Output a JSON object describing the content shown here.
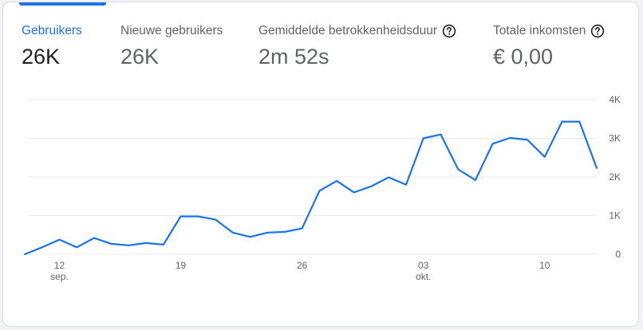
{
  "metrics": [
    {
      "label": "Gebruikers",
      "value": "26K",
      "help": false
    },
    {
      "label": "Nieuwe gebruikers",
      "value": "26K",
      "help": false
    },
    {
      "label": "Gemiddelde betrokkenheidsduur",
      "value": "2m 52s",
      "help": true
    },
    {
      "label": "Totale inkomsten",
      "value": "€ 0,00",
      "help": true
    }
  ],
  "colors": {
    "accent": "#1a73e8",
    "line": "#1a73e8",
    "grid": "#e8eaed"
  },
  "chart_data": {
    "type": "line",
    "x_start": "2023-09-10",
    "x_end": "2023-10-12",
    "x_ticks": [
      {
        "date": "2023-09-12",
        "label": "12",
        "sublabel": "sep."
      },
      {
        "date": "2023-09-19",
        "label": "19",
        "sublabel": ""
      },
      {
        "date": "2023-09-26",
        "label": "26",
        "sublabel": ""
      },
      {
        "date": "2023-10-03",
        "label": "03",
        "sublabel": "okt."
      },
      {
        "date": "2023-10-10",
        "label": "10",
        "sublabel": ""
      }
    ],
    "y_ticks": [
      {
        "value": 0,
        "label": "0"
      },
      {
        "value": 1000,
        "label": "1K"
      },
      {
        "value": 2000,
        "label": "2K"
      },
      {
        "value": 3000,
        "label": "3K"
      },
      {
        "value": 4000,
        "label": "4K"
      }
    ],
    "ylim": [
      0,
      4000
    ],
    "grid": true,
    "series": [
      {
        "color": "#1a73e8",
        "points": [
          {
            "x": "2023-09-10",
            "y": 0
          },
          {
            "x": "2023-09-11",
            "y": 180
          },
          {
            "x": "2023-09-12",
            "y": 380
          },
          {
            "x": "2023-09-13",
            "y": 180
          },
          {
            "x": "2023-09-14",
            "y": 420
          },
          {
            "x": "2023-09-15",
            "y": 270
          },
          {
            "x": "2023-09-16",
            "y": 230
          },
          {
            "x": "2023-09-17",
            "y": 290
          },
          {
            "x": "2023-09-18",
            "y": 250
          },
          {
            "x": "2023-09-19",
            "y": 980
          },
          {
            "x": "2023-09-20",
            "y": 980
          },
          {
            "x": "2023-09-21",
            "y": 900
          },
          {
            "x": "2023-09-22",
            "y": 560
          },
          {
            "x": "2023-09-23",
            "y": 450
          },
          {
            "x": "2023-09-24",
            "y": 560
          },
          {
            "x": "2023-09-25",
            "y": 580
          },
          {
            "x": "2023-09-26",
            "y": 670
          },
          {
            "x": "2023-09-27",
            "y": 1640
          },
          {
            "x": "2023-09-28",
            "y": 1900
          },
          {
            "x": "2023-09-29",
            "y": 1600
          },
          {
            "x": "2023-09-30",
            "y": 1760
          },
          {
            "x": "2023-10-01",
            "y": 1990
          },
          {
            "x": "2023-10-02",
            "y": 1800
          },
          {
            "x": "2023-10-03",
            "y": 3000
          },
          {
            "x": "2023-10-04",
            "y": 3100
          },
          {
            "x": "2023-10-05",
            "y": 2200
          },
          {
            "x": "2023-10-06",
            "y": 1920
          },
          {
            "x": "2023-10-07",
            "y": 2860
          },
          {
            "x": "2023-10-08",
            "y": 3010
          },
          {
            "x": "2023-10-09",
            "y": 2960
          },
          {
            "x": "2023-10-10",
            "y": 2520
          },
          {
            "x": "2023-10-11",
            "y": 3430
          },
          {
            "x": "2023-10-12",
            "y": 3430
          },
          {
            "x": "2023-10-13",
            "y": 2230
          }
        ]
      }
    ]
  }
}
